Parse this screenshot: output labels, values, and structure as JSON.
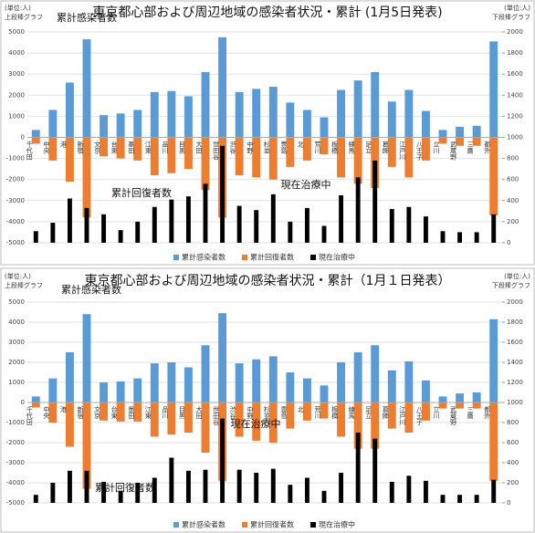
{
  "chart_data": [
    {
      "type": "bar",
      "title": "東京都心部および周辺地域の感染者状況・累計 (1月5日発表)",
      "left_axis_note": [
        "(単位:人)",
        "上段棒グラフ"
      ],
      "right_axis_note": [
        "(単位:人)",
        "下段棒グラフ"
      ],
      "categories": [
        "千代田",
        "中央",
        "港",
        "新宿",
        "文京",
        "台東",
        "墨田",
        "江東",
        "品川",
        "目黒",
        "大田",
        "世田谷",
        "渋谷",
        "中野",
        "杉並",
        "豊島",
        "北",
        "荒川",
        "板橋",
        "練馬",
        "足立",
        "葛飾",
        "江戸川",
        "八王子",
        "立川",
        "武蔵野",
        "三鷹",
        "都外"
      ],
      "series": [
        {
          "name": "累計感染者数",
          "color": "#5b9bd5",
          "values": [
            350,
            1300,
            2600,
            4650,
            1050,
            1130,
            1300,
            2150,
            2200,
            1950,
            3100,
            4750,
            2150,
            2300,
            2400,
            1650,
            1300,
            950,
            2250,
            2700,
            3100,
            1700,
            2250,
            1250,
            350,
            500,
            550,
            4550
          ]
        },
        {
          "name": "累計回復者数",
          "color": "#ed7d31",
          "values": [
            -300,
            -1100,
            -2100,
            -3800,
            -900,
            -1000,
            -1100,
            -1800,
            -1700,
            -1500,
            -2500,
            -3800,
            -1800,
            -1900,
            -2000,
            -1400,
            -1100,
            -800,
            -1900,
            -2200,
            -2400,
            -1400,
            -1900,
            -1100,
            -300,
            -400,
            -400,
            -3700
          ]
        },
        {
          "name": "現在治療中",
          "color": "#000000",
          "axis": "y2",
          "values": [
            110,
            190,
            420,
            330,
            270,
            120,
            200,
            340,
            410,
            440,
            560,
            920,
            350,
            310,
            460,
            200,
            330,
            160,
            450,
            620,
            780,
            320,
            340,
            250,
            110,
            100,
            100,
            270
          ]
        }
      ],
      "annotations": [
        "累計感染者数",
        "累計回復者数",
        "現在治療中"
      ],
      "ylim": [
        -5000,
        5000
      ],
      "yticks": [
        -5000,
        -4000,
        -3000,
        -2000,
        -1000,
        0,
        1000,
        2000,
        3000,
        4000,
        5000
      ],
      "y2lim": [
        0,
        2000
      ],
      "y2ticks": [
        0,
        200,
        400,
        600,
        800,
        1000,
        1200,
        1400,
        1600,
        1800,
        2000
      ],
      "grid": true
    },
    {
      "type": "bar",
      "title": "東京都心部および周辺地域の感染者状況・累計（1月１日発表）",
      "left_axis_note": [
        "(単位:人)",
        "上段棒グラフ"
      ],
      "right_axis_note": [
        "(単位:人)",
        "下段棒グラフ"
      ],
      "categories": [
        "千代田",
        "中央",
        "港",
        "新宿",
        "文京",
        "台東",
        "墨田",
        "江東",
        "品川",
        "目黒",
        "大田",
        "世田谷",
        "渋谷",
        "中野",
        "杉並",
        "豊島",
        "北",
        "荒川",
        "板橋",
        "練馬",
        "足立",
        "葛飾",
        "江戸川",
        "八王子",
        "立川",
        "武蔵野",
        "三鷹",
        "都外"
      ],
      "series": [
        {
          "name": "累計感染者数",
          "color": "#5b9bd5",
          "values": [
            300,
            1200,
            2500,
            4400,
            1000,
            1050,
            1200,
            1950,
            2000,
            1750,
            2850,
            4450,
            1950,
            2150,
            2300,
            1500,
            1200,
            850,
            2000,
            2500,
            2850,
            1600,
            2050,
            1100,
            300,
            450,
            500,
            4150
          ]
        },
        {
          "name": "累計回復者数",
          "color": "#ed7d31",
          "values": [
            -250,
            -1000,
            -2200,
            -4300,
            -900,
            -950,
            -950,
            -1700,
            -1600,
            -1500,
            -2500,
            -3900,
            -1700,
            -1900,
            -2000,
            -1300,
            -900,
            -800,
            -1700,
            -2300,
            -2300,
            -1300,
            -1500,
            -900,
            -300,
            -300,
            -300,
            -3900
          ]
        },
        {
          "name": "現在治療中",
          "color": "#000000",
          "axis": "y2",
          "values": [
            80,
            200,
            320,
            320,
            210,
            120,
            200,
            250,
            450,
            320,
            330,
            840,
            330,
            300,
            340,
            180,
            250,
            120,
            300,
            700,
            640,
            210,
            270,
            220,
            80,
            80,
            80,
            230
          ]
        }
      ],
      "annotations": [
        "累計感染者数",
        "現在治療中",
        "累計回復者数"
      ],
      "ylim": [
        -5000,
        5000
      ],
      "yticks": [
        -5000,
        -4000,
        -3000,
        -2000,
        -1000,
        0,
        1000,
        2000,
        3000,
        4000,
        5000
      ],
      "y2lim": [
        0,
        2000
      ],
      "y2ticks": [
        0,
        200,
        400,
        600,
        800,
        1000,
        1200,
        1400,
        1600,
        1800,
        2000
      ],
      "grid": true
    }
  ]
}
